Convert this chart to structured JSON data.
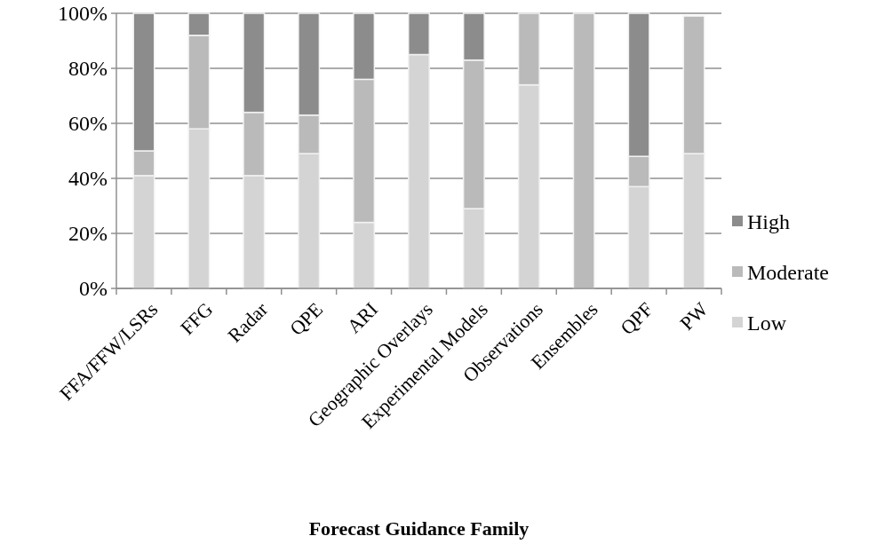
{
  "chart_data": {
    "type": "bar",
    "stacked": true,
    "xlabel": "Forecast Guidance Family",
    "categories": [
      "FFA/FFW/LSRs",
      "FFG",
      "Radar",
      "QPE",
      "ARI",
      "Geographic Overlays",
      "Experimental Models",
      "Observations",
      "Ensembles",
      "QPF",
      "PW"
    ],
    "series": [
      {
        "name": "Low",
        "color": "#d4d4d4",
        "values": [
          41,
          58,
          41,
          49,
          24,
          85,
          29,
          74,
          0,
          37,
          49
        ]
      },
      {
        "name": "Moderate",
        "color": "#bababa",
        "values": [
          9,
          34,
          23,
          14,
          52,
          0,
          54,
          26,
          100,
          11,
          50
        ]
      },
      {
        "name": "High",
        "color": "#8c8c8c",
        "values": [
          50,
          8,
          36,
          37,
          24,
          15,
          17,
          0,
          0,
          52,
          null
        ]
      }
    ],
    "ylim": [
      0,
      100
    ],
    "yticks": [
      {
        "value": 0,
        "label": "0%"
      },
      {
        "value": 20,
        "label": "20%"
      },
      {
        "value": 40,
        "label": "40%"
      },
      {
        "value": 60,
        "label": "60%"
      },
      {
        "value": 80,
        "label": "80%"
      },
      {
        "value": 100,
        "label": "100%"
      }
    ],
    "grid": "y",
    "legend": "right"
  }
}
